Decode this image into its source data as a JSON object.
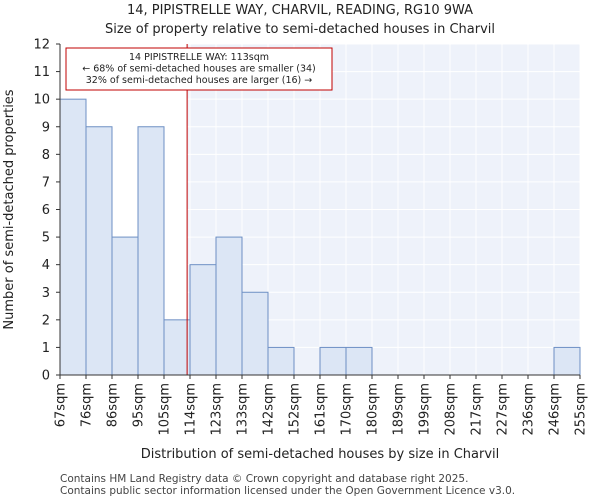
{
  "title": "14, PIPISTRELLE WAY, CHARVIL, READING, RG10 9WA",
  "subtitle": "Size of property relative to semi-detached houses in Charvil",
  "footer": {
    "line1": "Contains HM Land Registry data © Crown copyright and database right 2025.",
    "line2": "Contains public sector information licensed under the Open Government Licence v3.0."
  },
  "chart_data": {
    "type": "bar",
    "xlabel": "Distribution of semi-detached houses by size in Charvil",
    "ylabel": "Number of semi-detached properties",
    "ylim": [
      0,
      12
    ],
    "yticks": [
      0,
      1,
      2,
      3,
      4,
      5,
      6,
      7,
      8,
      9,
      10,
      11,
      12
    ],
    "bin_edges": [
      "67sqm",
      "76sqm",
      "86sqm",
      "95sqm",
      "105sqm",
      "114sqm",
      "123sqm",
      "133sqm",
      "142sqm",
      "152sqm",
      "161sqm",
      "170sqm",
      "180sqm",
      "189sqm",
      "199sqm",
      "208sqm",
      "217sqm",
      "227sqm",
      "236sqm",
      "246sqm",
      "255sqm"
    ],
    "values": [
      10,
      9,
      5,
      9,
      2,
      4,
      5,
      3,
      1,
      0,
      1,
      1,
      0,
      0,
      0,
      0,
      0,
      0,
      0,
      1
    ],
    "bar_color": "#dce6f5",
    "bar_edge_color": "#6d8fc4",
    "marker": {
      "value_sqm": 113,
      "color": "#c00000"
    },
    "annotation": {
      "lines": [
        "14 PIPISTRELLE WAY: 113sqm",
        "← 68% of semi-detached houses are smaller (34)",
        "32% of semi-detached houses are larger (16) →"
      ]
    }
  }
}
